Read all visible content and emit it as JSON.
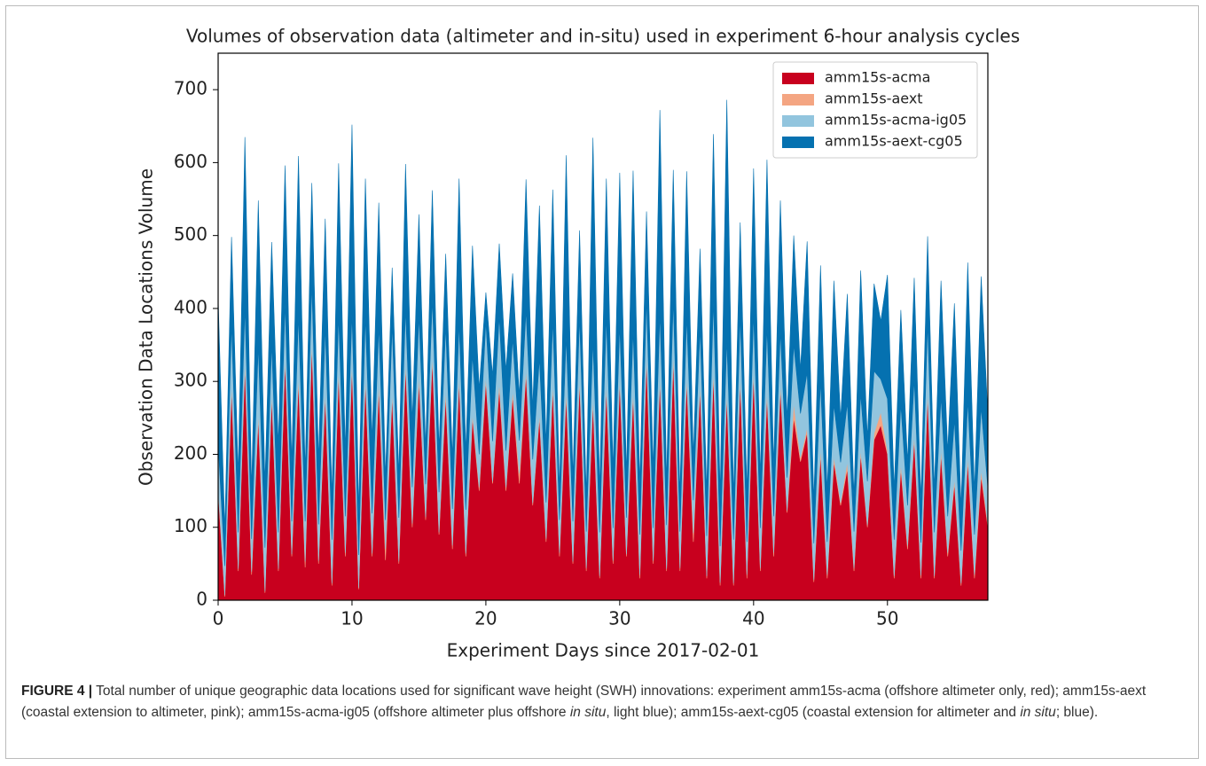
{
  "chart_data": {
    "type": "stacked_area",
    "title": "Volumes of observation data (altimeter and in-situ) used in experiment 6-hour analysis cycles",
    "xlabel": "Experiment Days since 2017-02-01",
    "ylabel": "Observation Data Locations Volume",
    "xlim": [
      0,
      57.5
    ],
    "ylim": [
      0,
      750
    ],
    "xticks": [
      0,
      10,
      20,
      30,
      40,
      50
    ],
    "yticks": [
      0,
      100,
      200,
      300,
      400,
      500,
      600,
      700
    ],
    "legend": "upper right",
    "x": [
      0,
      0.5,
      1,
      1.5,
      2,
      2.5,
      3,
      3.5,
      4,
      4.5,
      5,
      5.5,
      6,
      6.5,
      7,
      7.5,
      8,
      8.5,
      9,
      9.5,
      10,
      10.5,
      11,
      11.5,
      12,
      12.5,
      13,
      13.5,
      14,
      14.5,
      15,
      15.5,
      16,
      16.5,
      17,
      17.5,
      18,
      18.5,
      19,
      19.5,
      20,
      20.5,
      21,
      21.5,
      22,
      22.5,
      23,
      23.5,
      24,
      24.5,
      25,
      25.5,
      26,
      26.5,
      27,
      27.5,
      28,
      28.5,
      29,
      29.5,
      30,
      30.5,
      31,
      31.5,
      32,
      32.5,
      33,
      33.5,
      34,
      34.5,
      35,
      35.5,
      36,
      36.5,
      37,
      37.5,
      38,
      38.5,
      39,
      39.5,
      40,
      40.5,
      41,
      41.5,
      42,
      42.5,
      43,
      43.5,
      44,
      44.5,
      45,
      45.5,
      46,
      46.5,
      47,
      47.5,
      48,
      48.5,
      49,
      49.5,
      50,
      50.5,
      51,
      51.5,
      52,
      52.5,
      53,
      53.5,
      54,
      54.5,
      55,
      55.5,
      56,
      56.5,
      57,
      57.5
    ],
    "series": [
      {
        "name": "amm15s-acma",
        "color": "#c8001e",
        "values": [
          150,
          5,
          290,
          40,
          320,
          35,
          250,
          10,
          280,
          40,
          330,
          60,
          300,
          45,
          350,
          50,
          280,
          20,
          310,
          60,
          320,
          15,
          300,
          60,
          290,
          55,
          280,
          50,
          320,
          100,
          300,
          110,
          330,
          90,
          280,
          70,
          300,
          60,
          250,
          150,
          300,
          160,
          290,
          150,
          280,
          160,
          310,
          130,
          250,
          80,
          290,
          60,
          280,
          50,
          300,
          40,
          270,
          30,
          290,
          50,
          300,
          60,
          280,
          30,
          330,
          50,
          300,
          40,
          330,
          40,
          300,
          80,
          290,
          30,
          310,
          20,
          280,
          20,
          300,
          30,
          310,
          40,
          280,
          60,
          290,
          120,
          250,
          190,
          230,
          25,
          200,
          30,
          190,
          130,
          180,
          40,
          200,
          100,
          220,
          240,
          200,
          30,
          180,
          70,
          220,
          30,
          280,
          30,
          200,
          60,
          160,
          20,
          190,
          30,
          170,
          100
        ]
      },
      {
        "name": "amm15s-aext",
        "color": "#f4a582",
        "values": [
          5,
          2,
          8,
          3,
          10,
          4,
          8,
          2,
          6,
          3,
          6,
          3,
          9,
          8,
          7,
          4,
          8,
          3,
          9,
          5,
          7,
          2,
          8,
          4,
          10,
          15,
          6,
          3,
          8,
          5,
          9,
          4,
          7,
          3,
          10,
          5,
          8,
          4,
          6,
          5,
          7,
          3,
          9,
          5,
          8,
          14,
          7,
          3,
          6,
          4,
          8,
          5,
          10,
          3,
          7,
          4,
          9,
          3,
          8,
          4,
          6,
          3,
          9,
          5,
          8,
          4,
          7,
          3,
          10,
          4,
          8,
          12,
          7,
          3,
          9,
          4,
          6,
          3,
          8,
          5,
          7,
          4,
          9,
          5,
          8,
          3,
          20,
          6,
          7,
          3,
          9,
          5,
          8,
          4,
          10,
          4,
          7,
          3,
          9,
          18,
          6,
          3,
          8,
          5,
          7,
          4,
          9,
          3,
          8,
          5,
          7,
          3,
          8,
          5,
          9,
          4
        ]
      },
      {
        "name": "amm15s-acma-ig05",
        "color": "#92c5de",
        "values": [
          60,
          40,
          80,
          50,
          70,
          45,
          90,
          60,
          65,
          50,
          70,
          45,
          80,
          55,
          75,
          50,
          85,
          60,
          70,
          50,
          65,
          45,
          80,
          55,
          75,
          40,
          90,
          60,
          70,
          50,
          80,
          45,
          75,
          55,
          85,
          50,
          70,
          60,
          80,
          45,
          75,
          55,
          90,
          50,
          70,
          45,
          80,
          60,
          75,
          50,
          85,
          45,
          70,
          55,
          80,
          50,
          75,
          60,
          90,
          45,
          70,
          50,
          80,
          55,
          75,
          45,
          85,
          60,
          70,
          50,
          80,
          45,
          75,
          55,
          90,
          50,
          70,
          60,
          80,
          45,
          75,
          55,
          85,
          50,
          70,
          45,
          80,
          60,
          75,
          50,
          90,
          45,
          70,
          55,
          80,
          50,
          75,
          60,
          85,
          45,
          70,
          50,
          80,
          55,
          75,
          45,
          90,
          60,
          70,
          50,
          80,
          45,
          75,
          55,
          85,
          50
        ]
      },
      {
        "name": "amm15s-aext-cg05",
        "color": "#0571b0",
        "values": [
          200,
          50,
          120,
          80,
          235,
          70,
          200,
          90,
          140,
          120,
          190,
          80,
          220,
          70,
          140,
          90,
          150,
          60,
          210,
          90,
          260,
          60,
          190,
          100,
          170,
          60,
          80,
          60,
          200,
          90,
          140,
          50,
          150,
          60,
          100,
          70,
          200,
          80,
          150,
          90,
          40,
          90,
          100,
          110,
          90,
          60,
          180,
          70,
          210,
          80,
          180,
          40,
          250,
          60,
          120,
          50,
          280,
          60,
          190,
          80,
          210,
          60,
          220,
          70,
          120,
          80,
          280,
          60,
          180,
          50,
          200,
          60,
          110,
          60,
          230,
          70,
          330,
          60,
          130,
          70,
          200,
          70,
          230,
          70,
          180,
          80,
          150,
          60,
          180,
          60,
          160,
          70,
          170,
          60,
          150,
          50,
          170,
          60,
          120,
          80,
          170,
          70,
          130,
          60,
          140,
          60,
          120,
          60,
          160,
          90,
          160,
          60,
          190,
          60,
          180,
          100
        ]
      }
    ],
    "caption": {
      "label": "FIGURE 4 |",
      "parts": [
        " Total number of unique geographic data locations used for significant wave height (SWH) innovations: experiment amm15s-acma (offshore altimeter only, red); amm15s-aext (coastal extension to altimeter, pink); amm15s-acma-ig05 (offshore altimeter plus offshore ",
        "in situ",
        ", light blue); amm15s-aext-cg05 (coastal extension for altimeter and ",
        "in situ",
        "; blue)."
      ]
    }
  }
}
